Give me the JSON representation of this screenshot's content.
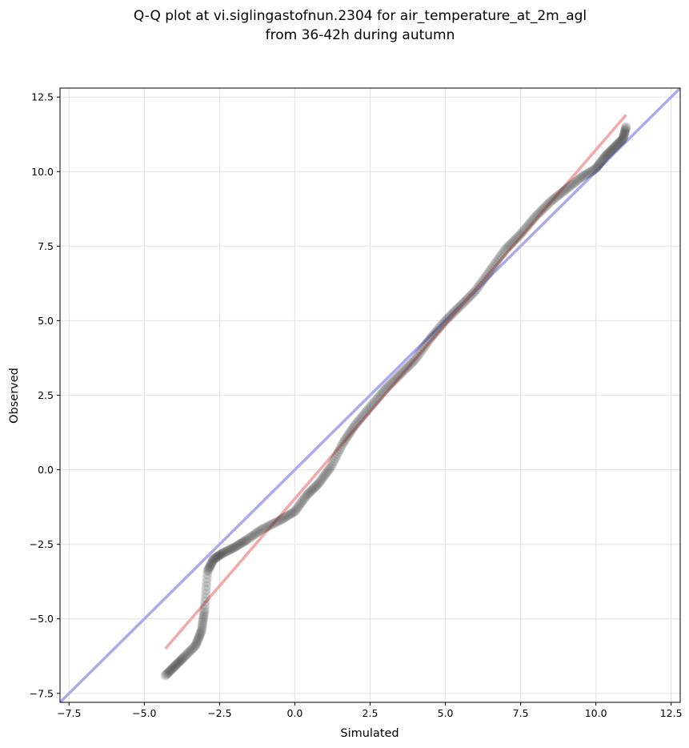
{
  "chart_data": {
    "type": "scatter",
    "title_lines": [
      "Q-Q plot at vi.siglingastofnun.2304 for air_temperature_at_2m_agl",
      "from 36-42h during autumn"
    ],
    "xlabel": "Simulated",
    "ylabel": "Observed",
    "xlim": [
      -7.8,
      12.8
    ],
    "ylim": [
      -7.8,
      12.8
    ],
    "xticks": [
      -7.5,
      -5.0,
      -2.5,
      0.0,
      2.5,
      5.0,
      7.5,
      10.0,
      12.5
    ],
    "yticks": [
      -7.5,
      -5.0,
      -2.5,
      0.0,
      2.5,
      5.0,
      7.5,
      10.0,
      12.5
    ],
    "xtick_labels": [
      "−7.5",
      "−5.0",
      "−2.5",
      "0.0",
      "2.5",
      "5.0",
      "7.5",
      "10.0",
      "12.5"
    ],
    "ytick_labels": [
      "−7.5",
      "−5.0",
      "−2.5",
      "0.0",
      "2.5",
      "5.0",
      "7.5",
      "10.0",
      "12.5"
    ],
    "grid": true,
    "identity_line": {
      "from": [
        -7.8,
        -7.8
      ],
      "to": [
        12.8,
        12.8
      ],
      "color": "#aaaaee"
    },
    "fit_line": {
      "from": [
        -4.3,
        -6.0
      ],
      "to": [
        11.0,
        11.9
      ],
      "color": "#f4a8a8"
    },
    "point_color": "#333333",
    "quantile_anchors": {
      "x": [
        -4.3,
        -4.0,
        -3.7,
        -3.3,
        -3.1,
        -3.0,
        -2.9,
        -2.7,
        -2.4,
        -2.0,
        -1.6,
        -1.1,
        -0.5,
        0.0,
        0.4,
        0.8,
        1.2,
        1.6,
        2.0,
        2.5,
        3.0,
        3.5,
        4.0,
        4.5,
        5.0,
        5.5,
        6.0,
        6.5,
        7.0,
        7.5,
        8.0,
        8.5,
        9.0,
        9.5,
        10.0,
        10.3,
        10.6,
        10.9,
        11.0
      ],
      "y": [
        -6.9,
        -6.6,
        -6.3,
        -5.9,
        -5.4,
        -4.7,
        -3.4,
        -3.0,
        -2.8,
        -2.6,
        -2.35,
        -2.0,
        -1.7,
        -1.4,
        -0.85,
        -0.45,
        0.1,
        0.9,
        1.5,
        2.1,
        2.7,
        3.2,
        3.7,
        4.4,
        5.0,
        5.5,
        6.0,
        6.7,
        7.4,
        7.9,
        8.5,
        9.0,
        9.4,
        9.8,
        10.1,
        10.5,
        10.8,
        11.1,
        11.5
      ],
      "count": 380
    }
  }
}
